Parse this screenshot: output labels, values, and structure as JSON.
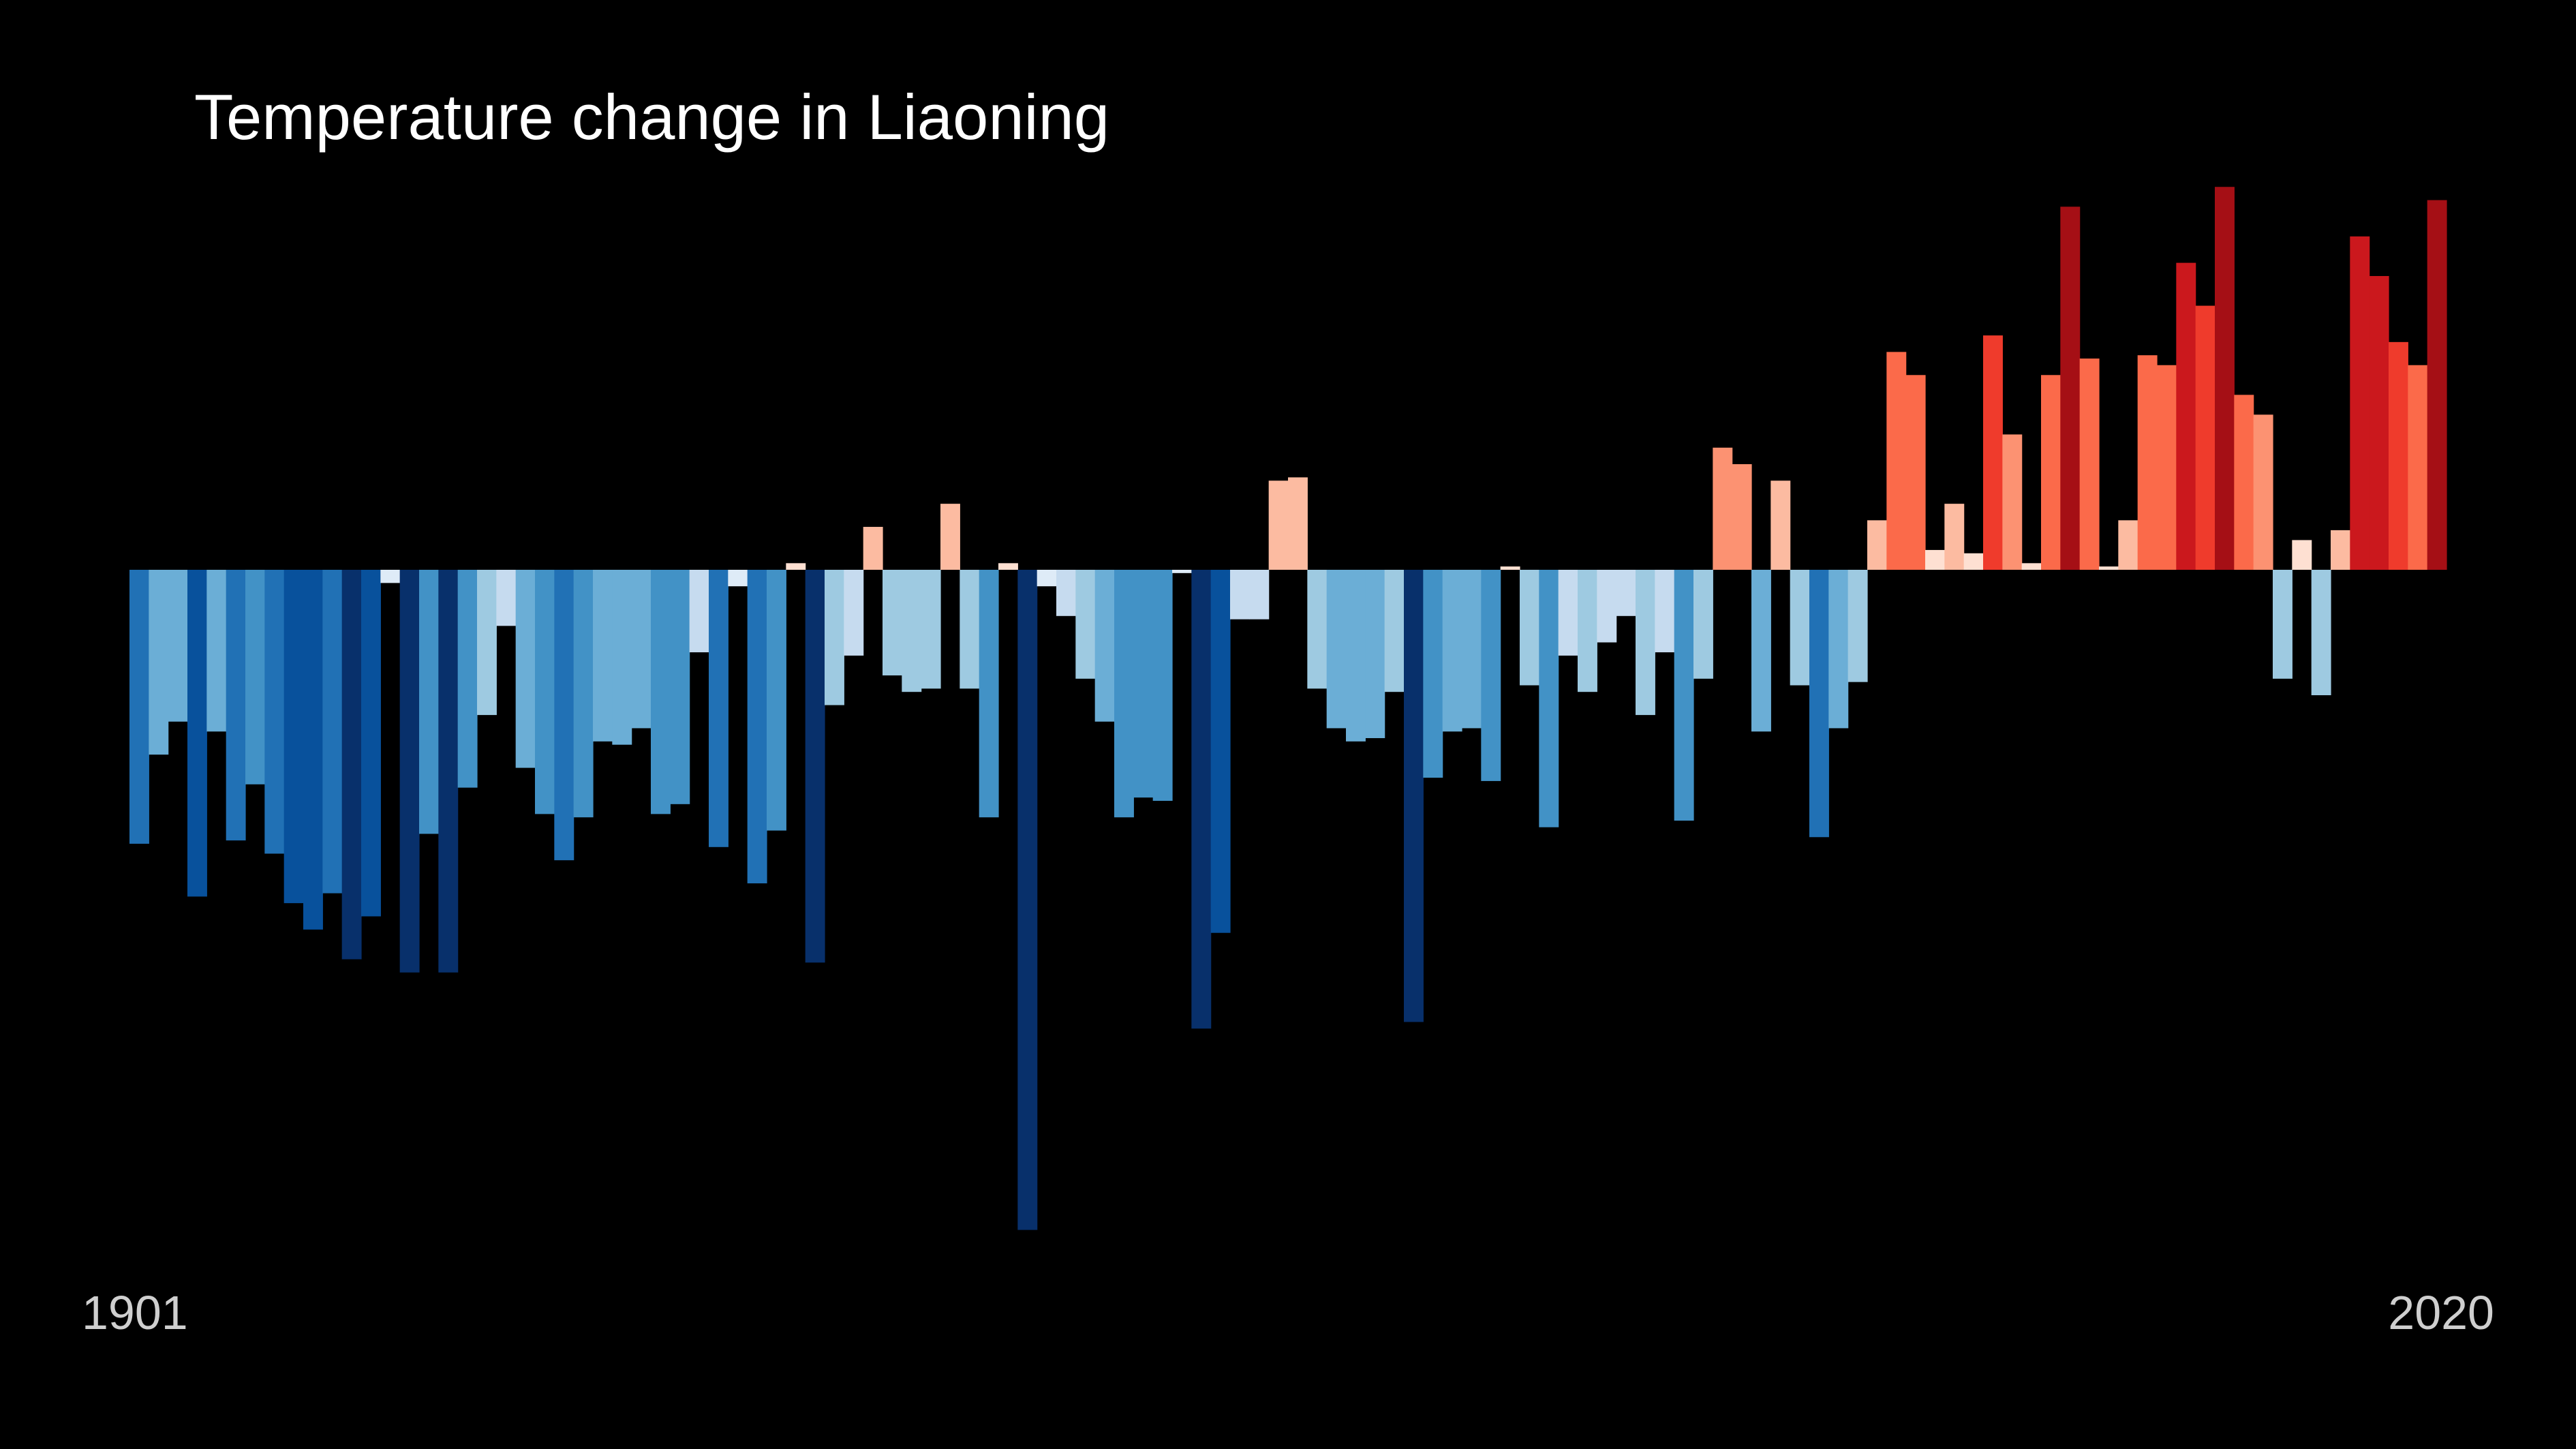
{
  "chart_data": {
    "type": "bar",
    "title": "Temperature change in Liaoning",
    "start_label": "1901",
    "end_label": "2020",
    "x": [
      1901,
      1902,
      1903,
      1904,
      1905,
      1906,
      1907,
      1908,
      1909,
      1910,
      1911,
      1912,
      1913,
      1914,
      1915,
      1916,
      1917,
      1918,
      1919,
      1920,
      1921,
      1922,
      1923,
      1924,
      1925,
      1926,
      1927,
      1928,
      1929,
      1930,
      1931,
      1932,
      1933,
      1934,
      1935,
      1936,
      1937,
      1938,
      1939,
      1940,
      1941,
      1942,
      1943,
      1944,
      1945,
      1946,
      1947,
      1948,
      1949,
      1950,
      1951,
      1952,
      1953,
      1954,
      1955,
      1956,
      1957,
      1958,
      1959,
      1960,
      1961,
      1962,
      1963,
      1964,
      1965,
      1966,
      1967,
      1968,
      1969,
      1970,
      1971,
      1972,
      1973,
      1974,
      1975,
      1976,
      1977,
      1978,
      1979,
      1980,
      1981,
      1982,
      1983,
      1984,
      1985,
      1986,
      1987,
      1988,
      1989,
      1990,
      1991,
      1992,
      1993,
      1994,
      1995,
      1996,
      1997,
      1998,
      1999,
      2000,
      2001,
      2002,
      2003,
      2004,
      2005,
      2006,
      2007,
      2008,
      2009,
      2010,
      2011,
      2012,
      2013,
      2014,
      2015,
      2016,
      2017,
      2018,
      2019,
      2020
    ],
    "values": [
      -0.83,
      -0.56,
      -0.46,
      -0.99,
      -0.49,
      -0.82,
      -0.65,
      -0.86,
      -1.01,
      -1.09,
      -0.98,
      -1.18,
      -1.05,
      -0.04,
      -1.22,
      -0.8,
      -1.22,
      -0.66,
      -0.44,
      -0.17,
      -0.6,
      -0.74,
      -0.88,
      -0.75,
      -0.52,
      -0.53,
      -0.48,
      -0.74,
      -0.71,
      -0.25,
      -0.84,
      -0.05,
      -0.95,
      -0.79,
      0.02,
      -1.19,
      -0.41,
      -0.26,
      0.13,
      -0.32,
      -0.37,
      -0.36,
      0.2,
      -0.36,
      -0.75,
      0.02,
      -2.0,
      -0.05,
      -0.14,
      -0.33,
      -0.46,
      -0.75,
      -0.69,
      -0.7,
      -0.01,
      -1.39,
      -1.1,
      -0.15,
      -0.15,
      0.27,
      0.28,
      -0.36,
      -0.48,
      -0.52,
      -0.51,
      -0.37,
      -1.37,
      -0.63,
      -0.49,
      -0.48,
      -0.64,
      0.01,
      -0.35,
      -0.78,
      -0.26,
      -0.37,
      -0.22,
      -0.14,
      -0.44,
      -0.25,
      -0.76,
      -0.33,
      0.37,
      0.32,
      -0.49,
      0.27,
      -0.35,
      -0.81,
      -0.48,
      -0.34,
      0.15,
      0.66,
      0.59,
      0.06,
      0.2,
      0.05,
      0.71,
      0.41,
      0.02,
      0.59,
      1.1,
      0.64,
      0.01,
      0.15,
      0.65,
      0.62,
      0.93,
      0.8,
      1.16,
      0.53,
      0.47,
      -0.33,
      0.09,
      -0.38,
      0.12,
      1.01,
      0.89,
      0.69,
      0.62,
      1.12
    ],
    "ylim": [
      -2.15,
      1.35
    ],
    "colormap_note": "blue for negative anomalies, red for positive anomalies"
  }
}
